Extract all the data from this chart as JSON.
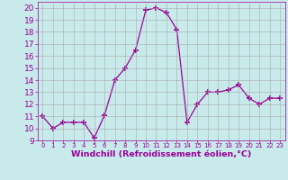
{
  "x": [
    0,
    1,
    2,
    3,
    4,
    5,
    6,
    7,
    8,
    9,
    10,
    11,
    12,
    13,
    14,
    15,
    16,
    17,
    18,
    19,
    20,
    21,
    22,
    23
  ],
  "y": [
    11,
    10,
    10.5,
    10.5,
    10.5,
    9.2,
    11.1,
    14,
    15,
    16.5,
    19.8,
    20.0,
    19.6,
    18.2,
    10.5,
    12.0,
    13.0,
    13.0,
    13.2,
    13.6,
    12.5,
    12.0,
    12.5,
    12.5
  ],
  "line_color": "#990099",
  "marker": "+",
  "marker_size": 4,
  "marker_lw": 1.2,
  "bg_color": "#c8eaea",
  "grid_color": "#aaaaaa",
  "xlabel": "Windchill (Refroidissement éolien,°C)",
  "xlabel_color": "#990099",
  "xlabel_fontsize": 6.8,
  "tick_color": "#990099",
  "ytick_fontsize": 6.5,
  "xtick_fontsize": 5.0,
  "ylim": [
    9,
    20.5
  ],
  "xlim": [
    -0.5,
    23.5
  ],
  "yticks": [
    9,
    10,
    11,
    12,
    13,
    14,
    15,
    16,
    17,
    18,
    19,
    20
  ],
  "xticks": [
    0,
    1,
    2,
    3,
    4,
    5,
    6,
    7,
    8,
    9,
    10,
    11,
    12,
    13,
    14,
    15,
    16,
    17,
    18,
    19,
    20,
    21,
    22,
    23
  ]
}
